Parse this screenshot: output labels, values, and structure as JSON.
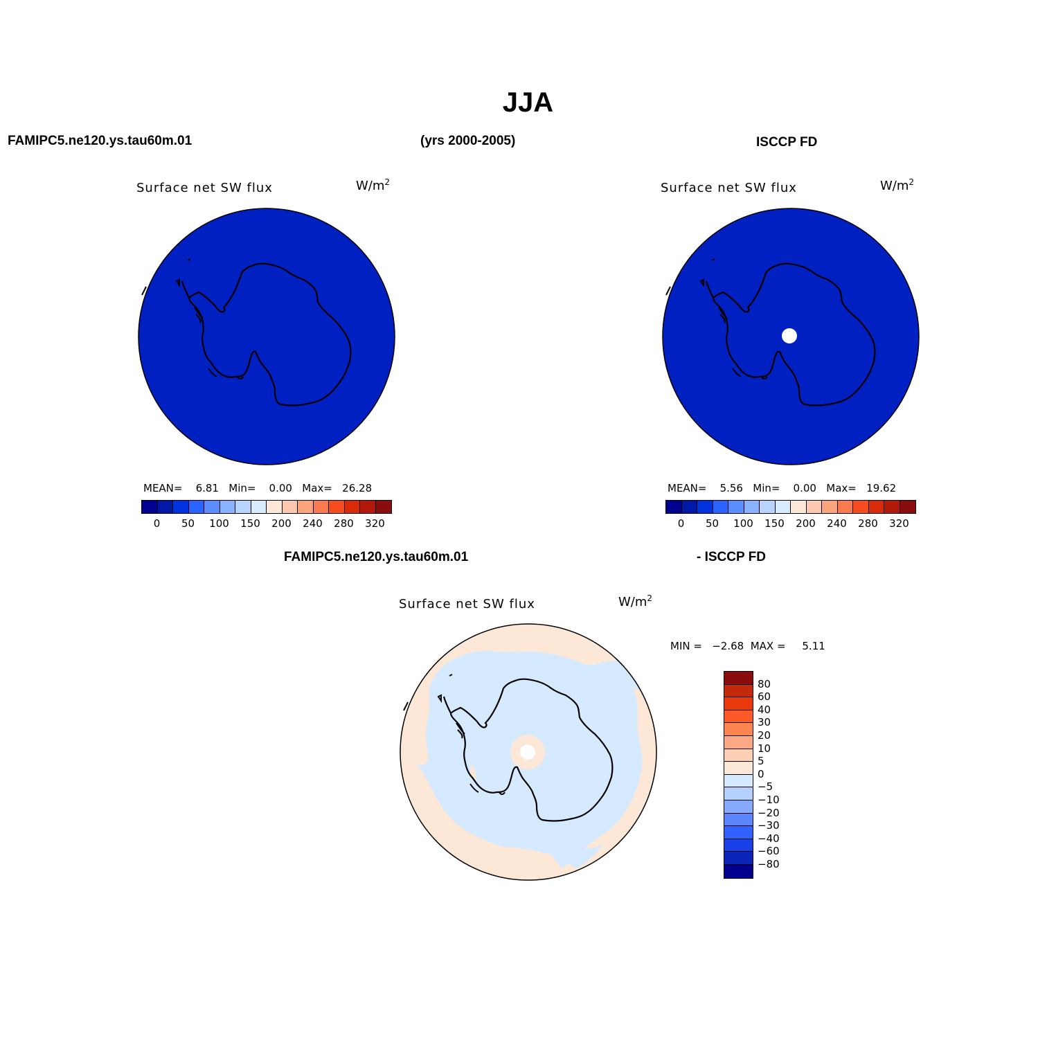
{
  "title": "JJA",
  "header": {
    "case_name": "FAMIPC5.ne120.ys.tau60m.01",
    "years": "(yrs 2000-2005)",
    "obs_name": "ISCCP FD",
    "diff_case": "FAMIPC5.ne120.ys.tau60m.01",
    "diff_obs": "- ISCCP FD"
  },
  "panels": [
    {
      "id": "model",
      "variable": "Surface net SW flux",
      "units_base": "W/m",
      "units_exp": "2",
      "stats": {
        "mean_label": "MEAN=",
        "mean": "6.81",
        "min_label": "Min=",
        "min": "0.00",
        "max_label": "Max=",
        "max": "26.28"
      },
      "fill_color": "#0020c2",
      "polar_hole": false
    },
    {
      "id": "obs",
      "variable": "Surface net SW flux",
      "units_base": "W/m",
      "units_exp": "2",
      "stats": {
        "mean_label": "MEAN=",
        "mean": "5.56",
        "min_label": "Min=",
        "min": "0.00",
        "max_label": "Max=",
        "max": "19.62"
      },
      "fill_color": "#0020c2",
      "polar_hole": true
    },
    {
      "id": "diff",
      "variable": "Surface net SW flux",
      "units_base": "W/m",
      "units_exp": "2",
      "stats_text": "MIN =   −2.68  MAX =     5.11",
      "fill_color": "#d6eaff",
      "positive_color": "#fde7d6",
      "polar_hole": true
    }
  ],
  "colorbar_main": {
    "colors": [
      "#00008f",
      "#0018a6",
      "#0033e0",
      "#2b63ff",
      "#5b8dff",
      "#8ab3ff",
      "#b9d3ff",
      "#d9ecff",
      "#fde7d6",
      "#fcc8b0",
      "#fba47e",
      "#f97a4f",
      "#f74d1e",
      "#d92a0a",
      "#b3190a",
      "#8a0d0d"
    ],
    "labels": [
      "0",
      "50",
      "100",
      "150",
      "200",
      "240",
      "280",
      "320"
    ]
  },
  "colorbar_diff": {
    "colors": [
      "#8a0d0d",
      "#c32a0a",
      "#e8380c",
      "#fb5a28",
      "#fd8550",
      "#fda884",
      "#fdcfb5",
      "#fde8d8",
      "#d6eaff",
      "#b3d0ff",
      "#86aaff",
      "#5a86ff",
      "#2f62ff",
      "#1840e6",
      "#0a24b8",
      "#00008f"
    ],
    "labels": [
      "80",
      "60",
      "40",
      "30",
      "20",
      "10",
      "5",
      "0",
      "−5",
      "−10",
      "−20",
      "−30",
      "−40",
      "−60",
      "−80"
    ]
  }
}
